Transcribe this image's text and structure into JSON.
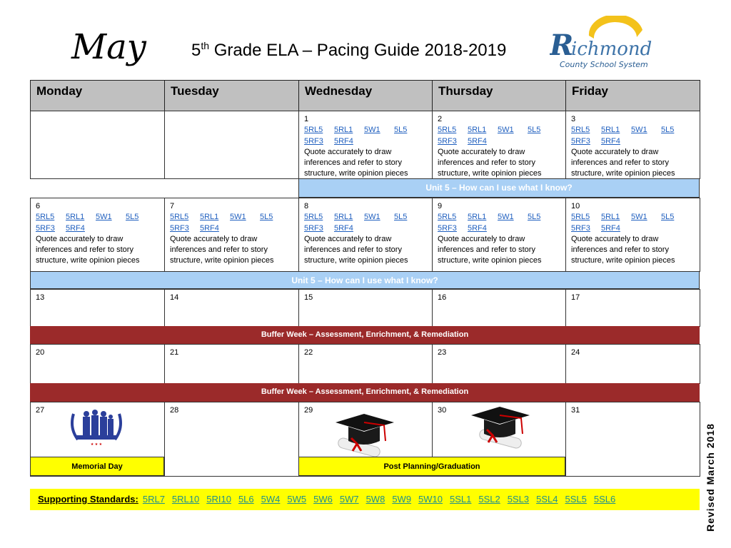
{
  "header": {
    "month": "May",
    "grade_sup": "th",
    "title_prefix": "5",
    "title_rest": " Grade ELA – Pacing Guide 2018-2019",
    "logo": "Richmond County School System"
  },
  "days": [
    "Monday",
    "Tuesday",
    "Wednesday",
    "Thursday",
    "Friday"
  ],
  "standards": [
    "5RL5",
    "5RL1",
    "5W1",
    "5L5",
    "5RF3",
    "5RF4"
  ],
  "description": "Quote accurately to draw inferences and refer to story structure, write opinion pieces",
  "dates": {
    "d1": "1",
    "d2": "2",
    "d3": "3",
    "d6": "6",
    "d7": "7",
    "d8": "8",
    "d9": "9",
    "d10": "10",
    "d13": "13",
    "d14": "14",
    "d15": "15",
    "d16": "16",
    "d17": "17",
    "d20": "20",
    "d21": "21",
    "d22": "22",
    "d23": "23",
    "d24": "24",
    "d27": "27",
    "d28": "28",
    "d29": "29",
    "d30": "30",
    "d31": "31"
  },
  "bands": {
    "unit5": "Unit 5 – How can I use what I know?",
    "buffer": "Buffer Week  – Assessment, Enrichment, & Remediation"
  },
  "events": {
    "memorial": "Memorial Day",
    "graduation": "Post Planning/Graduation"
  },
  "supporting": {
    "label": "Supporting Standards:",
    "items": [
      "5RL7",
      "5RL10",
      "5RI10",
      "5L6",
      "5W4",
      "5W5",
      "5W6",
      "5W7",
      "5W8",
      "5W9",
      "5W10",
      "5SL1",
      "5SL2",
      "5SL3",
      "5SL4",
      "5SL5",
      "5SL6"
    ]
  },
  "revised": "Revised March 2018",
  "colors": {
    "header_gray": "#c0c0c0",
    "unit_blue": "#a9d0f5",
    "buffer_red": "#9b2a2a",
    "highlight_yellow": "#ffff00",
    "link_blue": "#1f5fbf"
  }
}
